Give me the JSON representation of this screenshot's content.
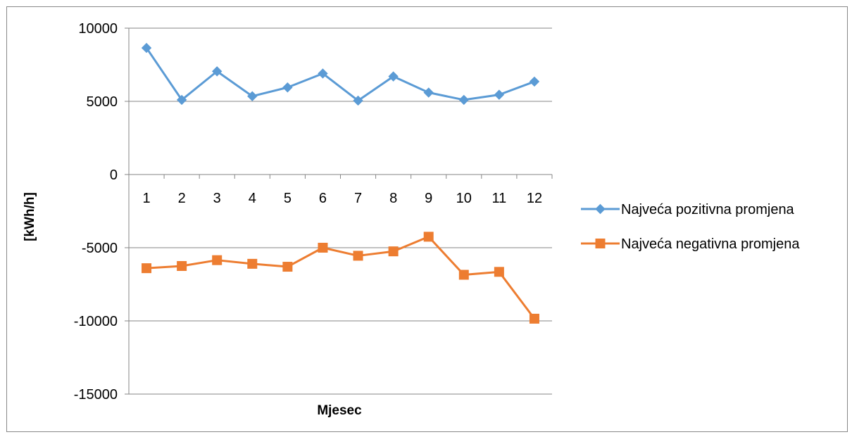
{
  "chart_data": {
    "type": "line",
    "xlabel": "Mjesec",
    "ylabel": "[kWh/h]",
    "categories": [
      "1",
      "2",
      "3",
      "4",
      "5",
      "6",
      "7",
      "8",
      "9",
      "10",
      "11",
      "12"
    ],
    "ylim": [
      -15000,
      10000
    ],
    "yticks": [
      10000,
      5000,
      0,
      -5000,
      -10000,
      -15000
    ],
    "ytick_labels": [
      "10000",
      "5000",
      "0",
      "-5000",
      "-10000",
      "-15000"
    ],
    "grid": true,
    "legend_position": "right",
    "series": [
      {
        "name": "Najveća pozitivna promjena",
        "color": "#5b9bd5",
        "marker": "diamond",
        "values": [
          8650,
          5100,
          7050,
          5350,
          5950,
          6900,
          5050,
          6700,
          5600,
          5100,
          5450,
          6350
        ]
      },
      {
        "name": "Najveća negativna promjena",
        "color": "#ed7d31",
        "marker": "square",
        "values": [
          -6400,
          -6250,
          -5850,
          -6100,
          -6300,
          -5000,
          -5550,
          -5250,
          -4250,
          -6850,
          -6650,
          -9850
        ]
      }
    ]
  }
}
